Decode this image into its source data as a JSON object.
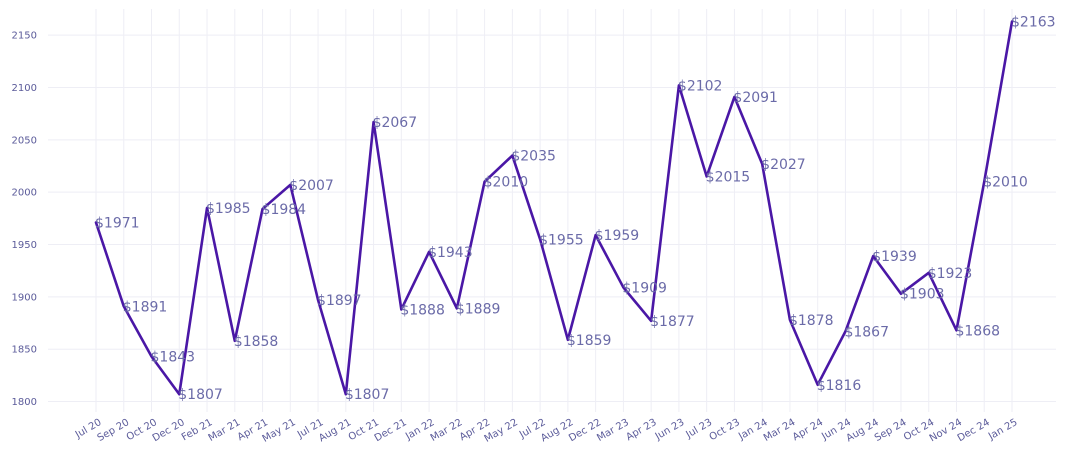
{
  "chart_data": {
    "type": "line",
    "title": "",
    "xlabel": "",
    "ylabel": "",
    "categories": [
      "Jul 20",
      "Sep 20",
      "Oct 20",
      "Dec 20",
      "Feb 21",
      "Mar 21",
      "Apr 21",
      "May 21",
      "Jul 21",
      "Aug 21",
      "Oct 21",
      "Dec 21",
      "Jan 22",
      "Mar 22",
      "Apr 22",
      "May 22",
      "Jul 22",
      "Aug 22",
      "Dec 22",
      "Mar 23",
      "Apr 23",
      "Jun 23",
      "Jul 23",
      "Oct 23",
      "Jan 24",
      "Mar 24",
      "Apr 24",
      "Jun 24",
      "Aug 24",
      "Sep 24",
      "Oct 24",
      "Nov 24",
      "Dec 24",
      "Jan 25"
    ],
    "series": [
      {
        "values": [
          1971,
          1891,
          1843,
          1807,
          1985,
          1858,
          1984,
          2007,
          1897,
          1807,
          2067,
          1888,
          1943,
          1889,
          2010,
          2035,
          1955,
          1859,
          1959,
          1909,
          1877,
          2102,
          2015,
          2091,
          2027,
          1878,
          1816,
          1867,
          1939,
          1903,
          1923,
          1868,
          2010,
          2163
        ]
      }
    ],
    "data_labels": [
      "$1971",
      "$1891",
      "$1843",
      "$1807",
      "$1985",
      "$1858",
      "$1984",
      "$2007",
      "$1897",
      "$1807",
      "$2067",
      "$1888",
      "$1943",
      "$1889",
      "$2010",
      "$2035",
      "$1955",
      "$1859",
      "$1959",
      "$1909",
      "$1877",
      "$2102",
      "$2015",
      "$2091",
      "$2027",
      "$1878",
      "$1816",
      "$1867",
      "$1939",
      "$1903",
      "$1923",
      "$1868",
      "$2010",
      "$2163"
    ],
    "y_ticks": [
      1800,
      1850,
      1900,
      1950,
      2000,
      2050,
      2100,
      2150
    ],
    "ylim": [
      1790,
      2175
    ],
    "grid": true,
    "line_color": "#4a17a6",
    "legend": "none"
  }
}
